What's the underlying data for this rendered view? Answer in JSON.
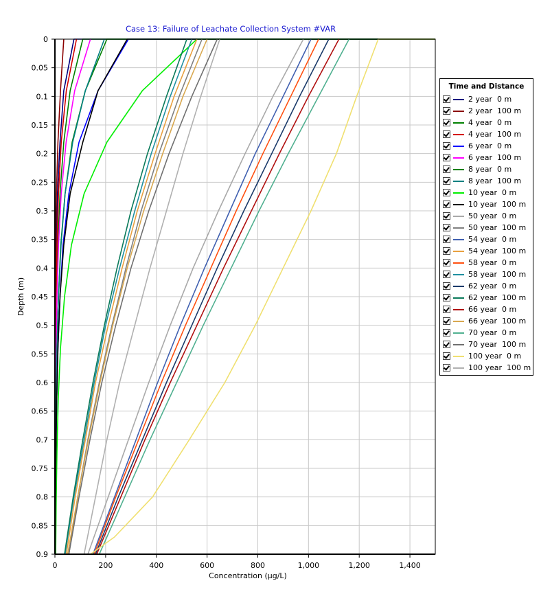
{
  "chart_data": {
    "type": "line",
    "title": "Case 13: Failure of Leachate Collection System   #VAR",
    "xlabel": "Concentration (µg/L)",
    "ylabel": "Depth (m)",
    "xlim": [
      0,
      1500
    ],
    "ylim": [
      0,
      0.9
    ],
    "y_inverted": true,
    "grid": true,
    "legend_title": "Time and Distance",
    "legend_position": "right",
    "x_ticks": [
      0,
      200,
      400,
      600,
      800,
      1000,
      1200,
      1400
    ],
    "x_tick_labels": [
      "0",
      "200",
      "400",
      "600",
      "800",
      "1,000",
      "1,200",
      "1,400"
    ],
    "y_ticks": [
      0,
      0.05,
      0.1,
      0.15,
      0.2,
      0.25,
      0.3,
      0.35,
      0.4,
      0.45,
      0.5,
      0.55,
      0.6,
      0.65,
      0.7,
      0.75,
      0.8,
      0.85,
      0.9
    ],
    "y_tick_labels": [
      "0",
      "0.05",
      "0.1",
      "0.15",
      "0.2",
      "0.25",
      "0.3",
      "0.35",
      "0.4",
      "0.45",
      "0.5",
      "0.55",
      "0.6",
      "0.65",
      "0.7",
      "0.75",
      "0.8",
      "0.85",
      "0.9"
    ],
    "series": [
      {
        "name": "2 year  0 m",
        "color": "#000080",
        "points": [
          [
            1500,
            0
          ],
          [
            75,
            0
          ],
          [
            35,
            0.09
          ],
          [
            20,
            0.18
          ],
          [
            10,
            0.27
          ],
          [
            6,
            0.36
          ],
          [
            4,
            0.45
          ],
          [
            2,
            0.54
          ],
          [
            1,
            0.63
          ],
          [
            0,
            0.72
          ],
          [
            0,
            0.9
          ]
        ]
      },
      {
        "name": "2 year  100 m",
        "color": "#8b0000",
        "points": [
          [
            35,
            0
          ],
          [
            22,
            0.09
          ],
          [
            12,
            0.18
          ],
          [
            6,
            0.27
          ],
          [
            3,
            0.36
          ],
          [
            2,
            0.45
          ],
          [
            1,
            0.54
          ],
          [
            0,
            0.63
          ],
          [
            0,
            0.9
          ]
        ]
      },
      {
        "name": "4 year  0 m",
        "color": "#008000",
        "points": [
          [
            1500,
            0
          ],
          [
            110,
            0
          ],
          [
            60,
            0.09
          ],
          [
            35,
            0.18
          ],
          [
            20,
            0.27
          ],
          [
            12,
            0.36
          ],
          [
            7,
            0.45
          ],
          [
            4,
            0.54
          ],
          [
            2,
            0.63
          ],
          [
            1,
            0.72
          ],
          [
            0,
            0.81
          ],
          [
            0,
            0.9
          ]
        ]
      },
      {
        "name": "4 year  100 m",
        "color": "#d40000",
        "points": [
          [
            85,
            0
          ],
          [
            45,
            0.09
          ],
          [
            25,
            0.18
          ],
          [
            14,
            0.27
          ],
          [
            8,
            0.36
          ],
          [
            5,
            0.45
          ],
          [
            3,
            0.54
          ],
          [
            2,
            0.63
          ],
          [
            1,
            0.72
          ],
          [
            0,
            0.81
          ],
          [
            0,
            0.9
          ]
        ]
      },
      {
        "name": "6 year  0 m",
        "color": "#0000ff",
        "points": [
          [
            1500,
            0
          ],
          [
            290,
            0
          ],
          [
            170,
            0.09
          ],
          [
            95,
            0.18
          ],
          [
            55,
            0.27
          ],
          [
            32,
            0.36
          ],
          [
            20,
            0.45
          ],
          [
            12,
            0.54
          ],
          [
            7,
            0.63
          ],
          [
            4,
            0.72
          ],
          [
            2,
            0.81
          ],
          [
            1,
            0.9
          ]
        ]
      },
      {
        "name": "6 year  100 m",
        "color": "#ff00ff",
        "points": [
          [
            140,
            0
          ],
          [
            78,
            0.09
          ],
          [
            44,
            0.18
          ],
          [
            25,
            0.27
          ],
          [
            14,
            0.36
          ],
          [
            8,
            0.45
          ],
          [
            5,
            0.54
          ],
          [
            3,
            0.63
          ],
          [
            2,
            0.72
          ],
          [
            1,
            0.81
          ],
          [
            0,
            0.9
          ]
        ]
      },
      {
        "name": "8 year  0 m",
        "color": "#008000",
        "points": [
          [
            1500,
            0
          ],
          [
            205,
            0
          ],
          [
            120,
            0.09
          ],
          [
            68,
            0.18
          ],
          [
            40,
            0.27
          ],
          [
            23,
            0.36
          ],
          [
            14,
            0.45
          ],
          [
            8,
            0.54
          ],
          [
            5,
            0.63
          ],
          [
            3,
            0.72
          ],
          [
            2,
            0.81
          ],
          [
            1,
            0.9
          ]
        ]
      },
      {
        "name": "8 year  100 m",
        "color": "#008080",
        "points": [
          [
            195,
            0
          ],
          [
            120,
            0.09
          ],
          [
            70,
            0.18
          ],
          [
            40,
            0.27
          ],
          [
            24,
            0.36
          ],
          [
            14,
            0.45
          ],
          [
            8,
            0.54
          ],
          [
            5,
            0.63
          ],
          [
            3,
            0.72
          ],
          [
            2,
            0.81
          ],
          [
            1,
            0.9
          ]
        ]
      },
      {
        "name": "10 year  0 m",
        "color": "#00ee00",
        "points": [
          [
            1500,
            0
          ],
          [
            560,
            0
          ],
          [
            345,
            0.09
          ],
          [
            205,
            0.18
          ],
          [
            115,
            0.27
          ],
          [
            65,
            0.36
          ],
          [
            38,
            0.45
          ],
          [
            22,
            0.54
          ],
          [
            13,
            0.63
          ],
          [
            8,
            0.72
          ],
          [
            5,
            0.81
          ],
          [
            3,
            0.9
          ]
        ]
      },
      {
        "name": "10 year  100 m",
        "color": "#000000",
        "points": [
          [
            1500,
            0
          ],
          [
            285,
            0
          ],
          [
            170,
            0.09
          ],
          [
            110,
            0.18
          ],
          [
            60,
            0.27
          ],
          [
            35,
            0.36
          ],
          [
            20,
            0.45
          ],
          [
            12,
            0.54
          ],
          [
            7,
            0.63
          ],
          [
            4,
            0.72
          ],
          [
            2,
            0.81
          ],
          [
            1,
            0.9
          ]
        ]
      },
      {
        "name": "50 year  0 m",
        "color": "#a9a9a9",
        "points": [
          [
            980,
            0
          ],
          [
            860,
            0.1
          ],
          [
            750,
            0.2
          ],
          [
            645,
            0.3
          ],
          [
            545,
            0.4
          ],
          [
            455,
            0.5
          ],
          [
            370,
            0.6
          ],
          [
            290,
            0.7
          ],
          [
            210,
            0.8
          ],
          [
            130,
            0.9
          ]
        ]
      },
      {
        "name": "50 year  100 m",
        "color": "#808080",
        "points": [
          [
            580,
            0
          ],
          [
            490,
            0.1
          ],
          [
            410,
            0.2
          ],
          [
            340,
            0.3
          ],
          [
            280,
            0.4
          ],
          [
            225,
            0.5
          ],
          [
            175,
            0.6
          ],
          [
            130,
            0.7
          ],
          [
            90,
            0.8
          ],
          [
            55,
            0.9
          ]
        ]
      },
      {
        "name": "54 year  0 m",
        "color": "#4060b0",
        "points": [
          [
            1010,
            0
          ],
          [
            900,
            0.1
          ],
          [
            790,
            0.2
          ],
          [
            690,
            0.3
          ],
          [
            590,
            0.4
          ],
          [
            495,
            0.5
          ],
          [
            405,
            0.6
          ],
          [
            320,
            0.7
          ],
          [
            235,
            0.8
          ],
          [
            150,
            0.9
          ]
        ]
      },
      {
        "name": "54 year  100 m",
        "color": "#e8a040",
        "points": [
          [
            560,
            0
          ],
          [
            470,
            0.1
          ],
          [
            395,
            0.2
          ],
          [
            325,
            0.3
          ],
          [
            265,
            0.4
          ],
          [
            210,
            0.5
          ],
          [
            160,
            0.6
          ],
          [
            120,
            0.7
          ],
          [
            80,
            0.8
          ],
          [
            45,
            0.9
          ]
        ]
      },
      {
        "name": "58 year  0 m",
        "color": "#ff5010",
        "points": [
          [
            1040,
            0
          ],
          [
            930,
            0.1
          ],
          [
            820,
            0.2
          ],
          [
            715,
            0.3
          ],
          [
            615,
            0.4
          ],
          [
            515,
            0.5
          ],
          [
            420,
            0.6
          ],
          [
            330,
            0.7
          ],
          [
            240,
            0.8
          ],
          [
            155,
            0.9
          ]
        ]
      },
      {
        "name": "58 year  100 m",
        "color": "#2090a0",
        "points": [
          [
            540,
            0
          ],
          [
            455,
            0.1
          ],
          [
            380,
            0.2
          ],
          [
            315,
            0.3
          ],
          [
            255,
            0.4
          ],
          [
            200,
            0.5
          ],
          [
            155,
            0.6
          ],
          [
            115,
            0.7
          ],
          [
            75,
            0.8
          ],
          [
            40,
            0.9
          ]
        ]
      },
      {
        "name": "62 year  0 m",
        "color": "#1a3a6a",
        "points": [
          [
            1080,
            0
          ],
          [
            965,
            0.1
          ],
          [
            855,
            0.2
          ],
          [
            745,
            0.3
          ],
          [
            640,
            0.4
          ],
          [
            540,
            0.5
          ],
          [
            440,
            0.6
          ],
          [
            345,
            0.7
          ],
          [
            250,
            0.8
          ],
          [
            160,
            0.9
          ]
        ]
      },
      {
        "name": "62 year  100 m",
        "color": "#0a7a5a",
        "points": [
          [
            520,
            0
          ],
          [
            440,
            0.1
          ],
          [
            365,
            0.2
          ],
          [
            300,
            0.3
          ],
          [
            245,
            0.4
          ],
          [
            195,
            0.5
          ],
          [
            150,
            0.6
          ],
          [
            110,
            0.7
          ],
          [
            72,
            0.8
          ],
          [
            38,
            0.9
          ]
        ]
      },
      {
        "name": "66 year  0 m",
        "color": "#b01010",
        "points": [
          [
            1120,
            0
          ],
          [
            1000,
            0.1
          ],
          [
            885,
            0.2
          ],
          [
            775,
            0.3
          ],
          [
            665,
            0.4
          ],
          [
            560,
            0.5
          ],
          [
            455,
            0.6
          ],
          [
            355,
            0.7
          ],
          [
            260,
            0.8
          ],
          [
            165,
            0.9
          ]
        ]
      },
      {
        "name": "66 year  100 m",
        "color": "#d8a850",
        "points": [
          [
            600,
            0
          ],
          [
            505,
            0.1
          ],
          [
            425,
            0.2
          ],
          [
            350,
            0.3
          ],
          [
            285,
            0.4
          ],
          [
            228,
            0.5
          ],
          [
            178,
            0.6
          ],
          [
            132,
            0.7
          ],
          [
            90,
            0.8
          ],
          [
            50,
            0.9
          ]
        ]
      },
      {
        "name": "70 year  0 m",
        "color": "#50b090",
        "points": [
          [
            1160,
            0
          ],
          [
            1040,
            0.1
          ],
          [
            920,
            0.2
          ],
          [
            805,
            0.3
          ],
          [
            695,
            0.4
          ],
          [
            585,
            0.5
          ],
          [
            480,
            0.6
          ],
          [
            375,
            0.7
          ],
          [
            275,
            0.8
          ],
          [
            175,
            0.9
          ]
        ]
      },
      {
        "name": "70 year  100 m",
        "color": "#707070",
        "points": [
          [
            640,
            0
          ],
          [
            540,
            0.1
          ],
          [
            450,
            0.2
          ],
          [
            370,
            0.3
          ],
          [
            300,
            0.4
          ],
          [
            240,
            0.5
          ],
          [
            185,
            0.6
          ],
          [
            138,
            0.7
          ],
          [
            95,
            0.8
          ],
          [
            55,
            0.9
          ]
        ]
      },
      {
        "name": "100 year  0 m",
        "color": "#f0e070",
        "points": [
          [
            1500,
            0
          ],
          [
            1275,
            0
          ],
          [
            1190,
            0.1
          ],
          [
            1110,
            0.2
          ],
          [
            1010,
            0.3
          ],
          [
            900,
            0.4
          ],
          [
            790,
            0.5
          ],
          [
            670,
            0.6
          ],
          [
            530,
            0.7
          ],
          [
            385,
            0.8
          ],
          [
            235,
            0.87
          ],
          [
            140,
            0.9
          ]
        ]
      },
      {
        "name": "100 year  100 m",
        "color": "#b0b0b0",
        "points": [
          [
            650,
            0
          ],
          [
            575,
            0.1
          ],
          [
            505,
            0.2
          ],
          [
            440,
            0.3
          ],
          [
            375,
            0.4
          ],
          [
            315,
            0.5
          ],
          [
            255,
            0.6
          ],
          [
            205,
            0.7
          ],
          [
            160,
            0.8
          ],
          [
            115,
            0.9
          ]
        ]
      }
    ]
  }
}
